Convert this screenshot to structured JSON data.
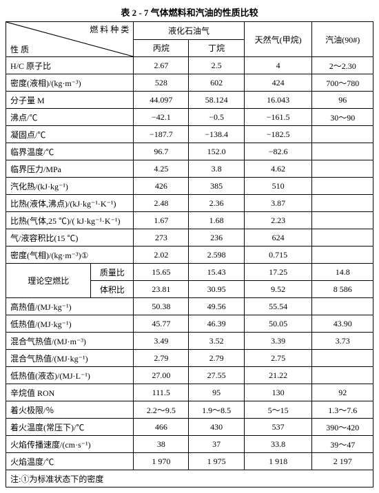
{
  "title": "表 2 - 7  气体燃料和汽油的性质比较",
  "header": {
    "diag_top": "燃 料 种 类",
    "diag_bottom": "性 质",
    "lpg": "液化石油气",
    "propane": "丙烷",
    "butane": "丁烷",
    "ng": "天然气(甲烷)",
    "gasoline": "汽油(90#)"
  },
  "rows": [
    {
      "label": "H/C 原子比",
      "c3": "2.67",
      "c4": "2.5",
      "c5": "4",
      "c6": "2～2.30"
    },
    {
      "label": "密度(液相)/(kg·m⁻³)",
      "c3": "528",
      "c4": "602",
      "c5": "424",
      "c6": "700～780"
    },
    {
      "label": "分子量 M",
      "c3": "44.097",
      "c4": "58.124",
      "c5": "16.043",
      "c6": "96"
    },
    {
      "label": "沸点/℃",
      "c3": "−42.1",
      "c4": "−0.5",
      "c5": "−161.5",
      "c6": "30～90"
    },
    {
      "label": "凝固点/℃",
      "c3": "−187.7",
      "c4": "−138.4",
      "c5": "−182.5",
      "c6": ""
    },
    {
      "label": "临界温度/℃",
      "c3": "96.7",
      "c4": "152.0",
      "c5": "−82.6",
      "c6": ""
    },
    {
      "label": "临界压力/MPa",
      "c3": "4.25",
      "c4": "3.8",
      "c5": "4.62",
      "c6": ""
    },
    {
      "label": "汽化热/(kJ·kg⁻¹)",
      "c3": "426",
      "c4": "385",
      "c5": "510",
      "c6": ""
    },
    {
      "label": "比热(液体,沸点)/(kJ·kg⁻¹·K⁻¹)",
      "c3": "2.48",
      "c4": "2.36",
      "c5": "3.87",
      "c6": ""
    },
    {
      "label": "比热(气体,25 ℃)/( kJ·kg⁻¹·K⁻¹)",
      "c3": "1.67",
      "c4": "1.68",
      "c5": "2.23",
      "c6": ""
    },
    {
      "label": "气/液容积比(15 ℃)",
      "c3": "273",
      "c4": "236",
      "c5": "624",
      "c6": ""
    },
    {
      "label": "密度(气相)/(kg·m⁻³)①",
      "c3": "2.02",
      "c4": "2.598",
      "c5": "0.715",
      "c6": ""
    }
  ],
  "stoich": {
    "label": "理论空燃比",
    "mass": {
      "label": "质量比",
      "c3": "15.65",
      "c4": "15.43",
      "c5": "17.25",
      "c6": "14.8"
    },
    "vol": {
      "label": "体积比",
      "c3": "23.81",
      "c4": "30.95",
      "c5": "9.52",
      "c6": "8 586"
    }
  },
  "rows2": [
    {
      "label": "高热值/(MJ·kg⁻¹)",
      "c3": "50.38",
      "c4": "49.56",
      "c5": "55.54",
      "c6": ""
    },
    {
      "label": "低热值/(MJ·kg⁻¹)",
      "c3": "45.77",
      "c4": "46.39",
      "c5": "50.05",
      "c6": "43.90"
    },
    {
      "label": "混合气热值/(MJ·m⁻³)",
      "c3": "3.49",
      "c4": "3.52",
      "c5": "3.39",
      "c6": "3.73"
    },
    {
      "label": "混合气热值/(MJ·kg⁻¹)",
      "c3": "2.79",
      "c4": "2.79",
      "c5": "2.75",
      "c6": ""
    },
    {
      "label": "低热值(液态)/(MJ·L⁻¹)",
      "c3": "27.00",
      "c4": "27.55",
      "c5": "21.22",
      "c6": ""
    },
    {
      "label": "辛烷值 RON",
      "c3": "111.5",
      "c4": "95",
      "c5": "130",
      "c6": "92"
    },
    {
      "label": "着火极限/％",
      "c3": "2.2～9.5",
      "c4": "1.9～8.5",
      "c5": "5～15",
      "c6": "1.3～7.6"
    },
    {
      "label": "着火温度(常压下)/℃",
      "c3": "466",
      "c4": "430",
      "c5": "537",
      "c6": "390～420"
    },
    {
      "label": "火焰传播速度/(cm·s⁻¹)",
      "c3": "38",
      "c4": "37",
      "c5": "33.8",
      "c6": "39～47"
    },
    {
      "label": "火焰温度/℃",
      "c3": "1 970",
      "c4": "1 975",
      "c5": "1 918",
      "c6": "2 197"
    }
  ],
  "footnote": "注:①为标准状态下的密度"
}
